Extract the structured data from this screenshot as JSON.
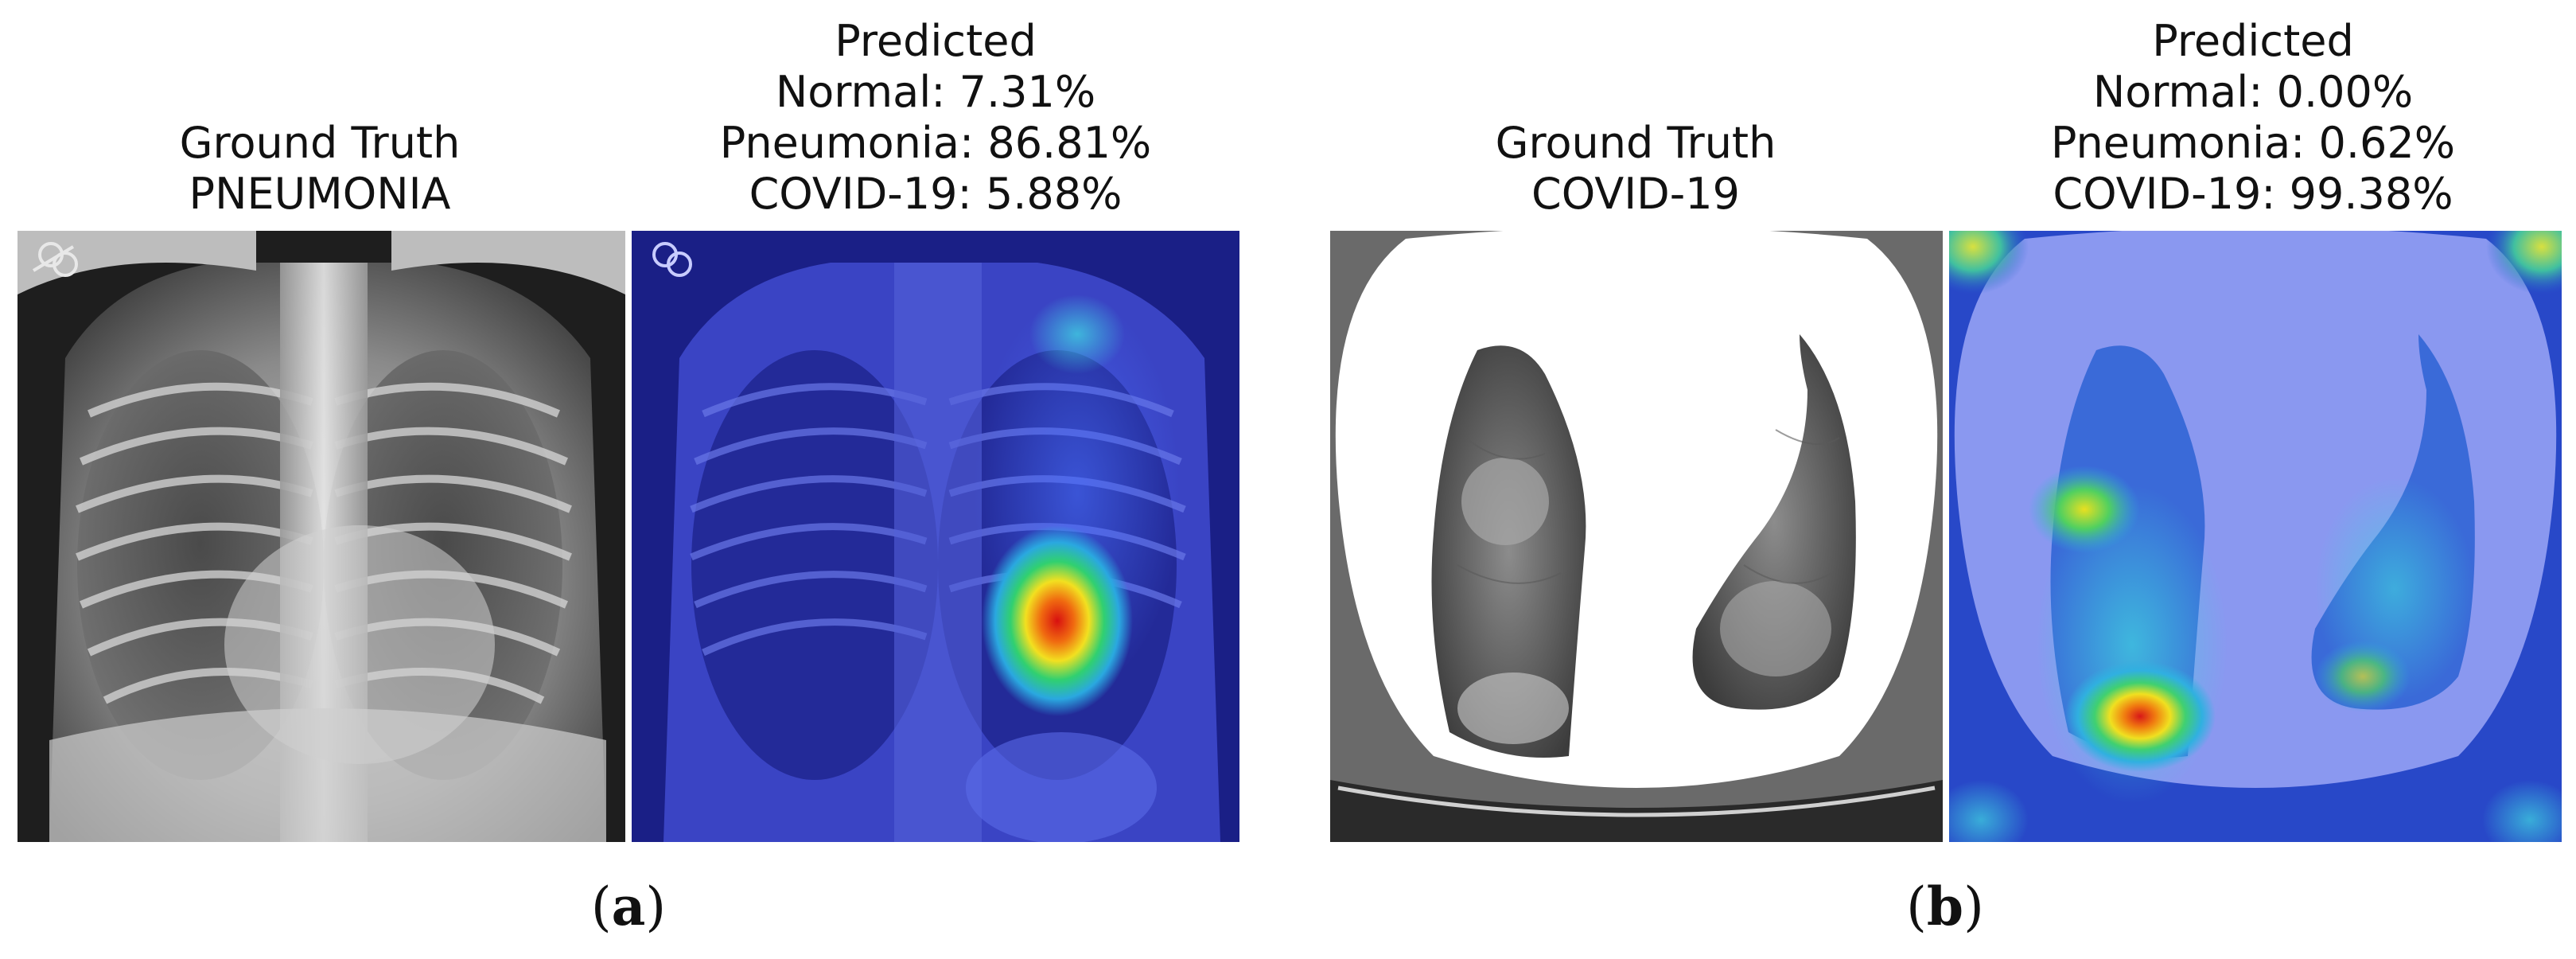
{
  "figure_a": {
    "label_open": "(",
    "label_letter": "a",
    "label_close": ")",
    "left_caption": {
      "line1": "Ground Truth",
      "line2": "PNEUMONIA"
    },
    "right_caption": {
      "line1": "Predicted",
      "line2": "Normal: 7.31%",
      "line3": "Pneumonia: 86.81%",
      "line4": "COVID-19: 5.88%"
    }
  },
  "figure_b": {
    "label_open": "(",
    "label_letter": "b",
    "label_close": ")",
    "left_caption": {
      "line1": "Ground Truth",
      "line2": "COVID-19"
    },
    "right_caption": {
      "line1": "Predicted",
      "line2": "Normal: 0.00%",
      "line3": "Pneumonia: 0.62%",
      "line4": "COVID-19: 99.38%"
    }
  }
}
